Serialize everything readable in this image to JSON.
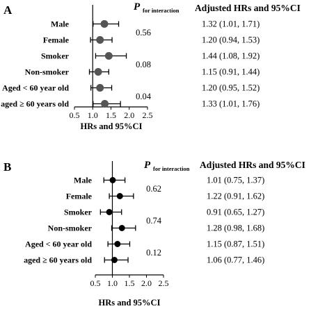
{
  "chart_data": [
    {
      "type": "forest",
      "panel_label": "A",
      "xlabel": "HRs and 95%CI",
      "xlim": [
        0.5,
        2.5
      ],
      "x_ticks": [
        "0.5",
        "1.0",
        "1.5",
        "2.0",
        "2.5"
      ],
      "reference_line": 1.0,
      "p_header_main": "P",
      "p_header_sub": "for interaction",
      "ci_header": "Adjusted HRs and 95%CI",
      "point_color": "#555555",
      "rows": [
        {
          "label": "Male",
          "hr": 1.32,
          "low": 1.01,
          "high": 1.71,
          "ci_text": "1.32 (1.01, 1.71)"
        },
        {
          "label": "Female",
          "hr": 1.2,
          "low": 0.94,
          "high": 1.53,
          "ci_text": "1.20 (0.94, 1.53)"
        },
        {
          "label": "Smoker",
          "hr": 1.44,
          "low": 1.08,
          "high": 1.92,
          "ci_text": "1.44 (1.08, 1.92)"
        },
        {
          "label": "Non-smoker",
          "hr": 1.15,
          "low": 0.91,
          "high": 1.44,
          "ci_text": "1.15 (0.91, 1.44)"
        },
        {
          "label": "Aged < 60 year old",
          "hr": 1.2,
          "low": 0.95,
          "high": 1.52,
          "ci_text": "1.20 (0.95, 1.52)"
        },
        {
          "label": "aged ≥ 60 years old",
          "hr": 1.33,
          "low": 1.01,
          "high": 1.76,
          "ci_text": "1.33 (1.01, 1.76)"
        }
      ],
      "p_values": [
        "0.56",
        "0.08",
        "0.04"
      ]
    },
    {
      "type": "forest",
      "panel_label": "B",
      "xlabel": "HRs and 95%CI",
      "xlim": [
        0.5,
        2.5
      ],
      "x_ticks": [
        "0.5",
        "1.0",
        "1.5",
        "2.0",
        "2.5"
      ],
      "reference_line": 1.0,
      "p_header_main": "P",
      "p_header_sub": "for interaction",
      "ci_header": "Adjusted HRs and 95%CI",
      "point_color": "#000000",
      "rows": [
        {
          "label": "Male",
          "hr": 1.01,
          "low": 0.75,
          "high": 1.37,
          "ci_text": "1.01 (0.75, 1.37)"
        },
        {
          "label": "Female",
          "hr": 1.22,
          "low": 0.91,
          "high": 1.62,
          "ci_text": "1.22 (0.91, 1.62)"
        },
        {
          "label": "Smoker",
          "hr": 0.91,
          "low": 0.65,
          "high": 1.27,
          "ci_text": "0.91 (0.65, 1.27)"
        },
        {
          "label": "Non-smoker",
          "hr": 1.28,
          "low": 0.98,
          "high": 1.68,
          "ci_text": "1.28 (0.98, 1.68)"
        },
        {
          "label": "Aged < 60 year old",
          "hr": 1.15,
          "low": 0.87,
          "high": 1.51,
          "ci_text": "1.15 (0.87, 1.51)"
        },
        {
          "label": "aged ≥ 60 years old",
          "hr": 1.06,
          "low": 0.77,
          "high": 1.46,
          "ci_text": "1.06 (0.77, 1.46)"
        }
      ],
      "p_values": [
        "0.62",
        "0.74",
        "0.12"
      ]
    }
  ]
}
